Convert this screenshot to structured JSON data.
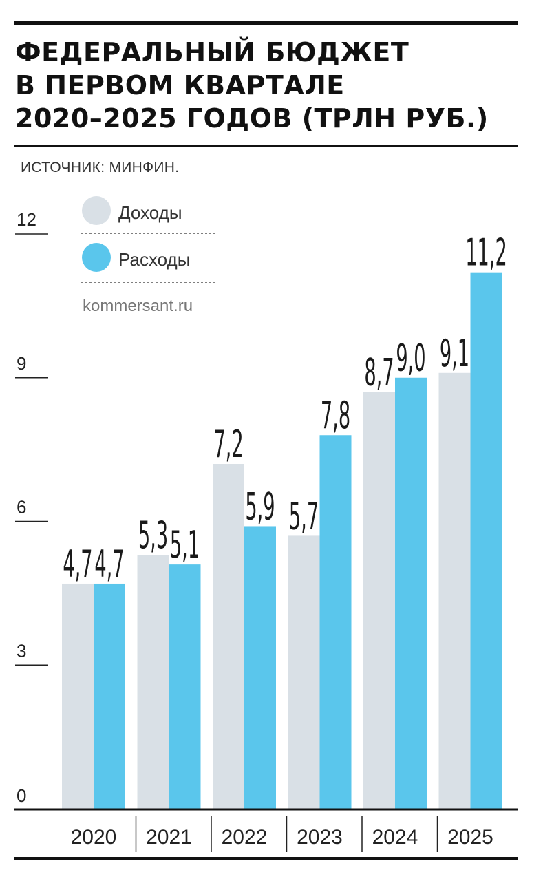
{
  "title": {
    "line1": "ФЕДЕРАЛЬНЫЙ БЮДЖЕТ",
    "line2": "В ПЕРВОМ КВАРТАЛЕ",
    "line3": "2020–2025 ГОДОВ (ТРЛН РУБ.)"
  },
  "source": "ИСТОЧНИК: МИНФИН.",
  "credit": "kommersant.ru",
  "colors": {
    "income": "#d9e0e6",
    "expense": "#5ac6ec",
    "text": "#111111"
  },
  "chart_data": {
    "type": "bar",
    "categories": [
      "2020",
      "2021",
      "2022",
      "2023",
      "2024",
      "2025"
    ],
    "series": [
      {
        "name": "Доходы",
        "values": [
          4.7,
          5.3,
          7.2,
          5.7,
          8.7,
          9.1
        ],
        "labels": [
          "4,7",
          "5,3",
          "7,2",
          "5,7",
          "8,7",
          "9,1"
        ]
      },
      {
        "name": "Расходы",
        "values": [
          4.7,
          5.1,
          5.9,
          7.8,
          9.0,
          11.2
        ],
        "labels": [
          "4,7",
          "5,1",
          "5,9",
          "7,8",
          "9,0",
          "11,2"
        ]
      }
    ],
    "ylim": [
      0,
      12
    ],
    "yticks": [
      "0",
      "3",
      "6",
      "9",
      "12"
    ],
    "legend": "top-left",
    "grid": false
  }
}
